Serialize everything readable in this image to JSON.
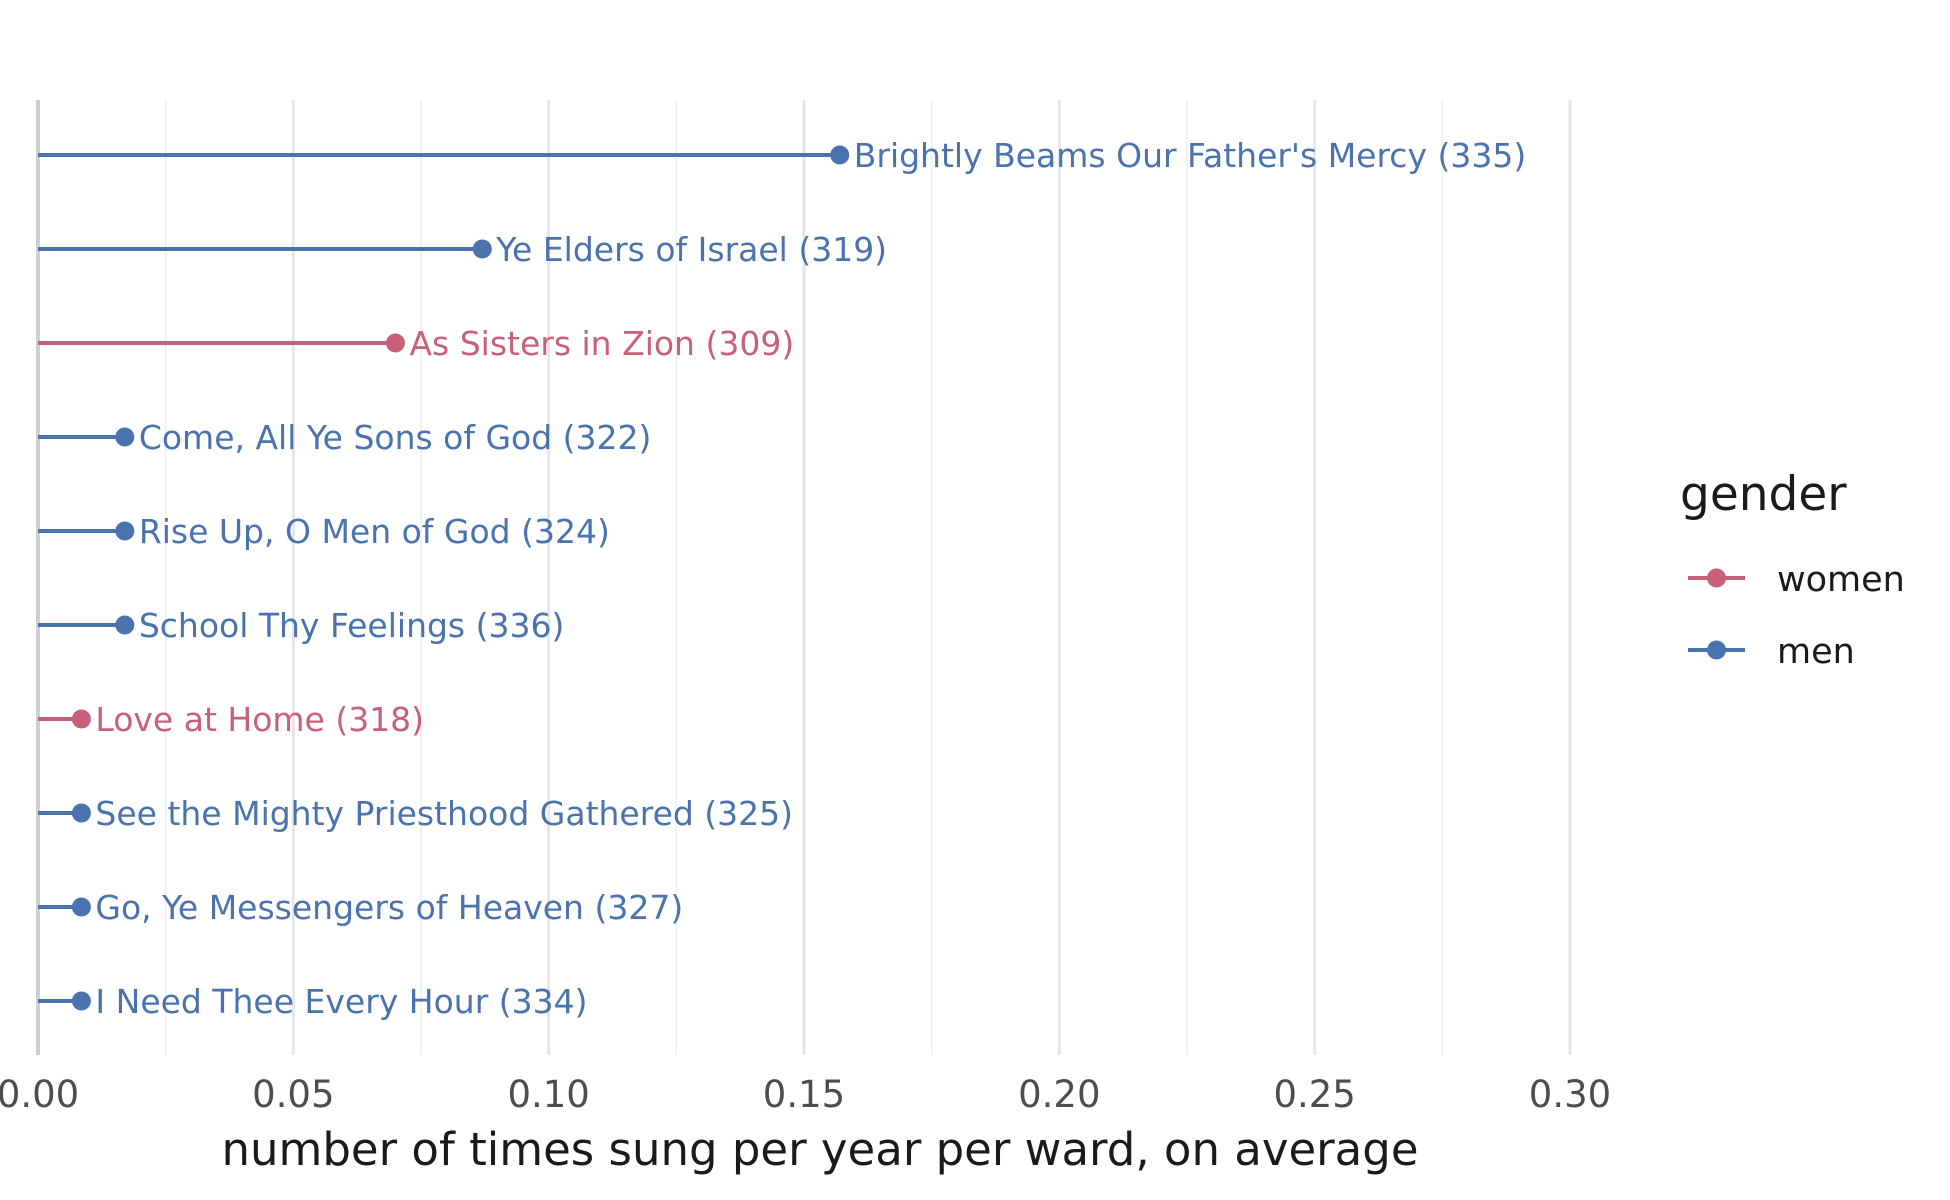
{
  "chart_data": {
    "type": "lollipop",
    "xlabel": "number of times sung per year per ward, on average",
    "xlim": [
      0,
      0.3
    ],
    "x_ticks": [
      "0.00",
      "0.05",
      "0.10",
      "0.15",
      "0.20",
      "0.25",
      "0.30"
    ],
    "x_tick_values": [
      0,
      0.05,
      0.1,
      0.15,
      0.2,
      0.25,
      0.3
    ],
    "grid": true,
    "legend": {
      "title": "gender",
      "position": "right",
      "entries": [
        {
          "key": "women",
          "label": "women",
          "color": "#c9607a"
        },
        {
          "key": "men",
          "label": "men",
          "color": "#4a73ae"
        }
      ]
    },
    "points": [
      {
        "label": "Brightly Beams Our Father's Mercy (335)",
        "value": 0.157,
        "gender": "men"
      },
      {
        "label": "Ye Elders of Israel (319)",
        "value": 0.087,
        "gender": "men"
      },
      {
        "label": "As Sisters in Zion (309)",
        "value": 0.07,
        "gender": "women"
      },
      {
        "label": "Come, All Ye Sons of God (322)",
        "value": 0.017,
        "gender": "men"
      },
      {
        "label": "Rise Up, O Men of God (324)",
        "value": 0.017,
        "gender": "men"
      },
      {
        "label": "School Thy Feelings (336)",
        "value": 0.017,
        "gender": "men"
      },
      {
        "label": "Love at Home (318)",
        "value": 0.0085,
        "gender": "women"
      },
      {
        "label": "See the Mighty Priesthood Gathered (325)",
        "value": 0.0085,
        "gender": "men"
      },
      {
        "label": "Go, Ye Messengers of Heaven (327)",
        "value": 0.0085,
        "gender": "men"
      },
      {
        "label": "I Need Thee Every Hour (334)",
        "value": 0.0085,
        "gender": "men"
      }
    ]
  }
}
